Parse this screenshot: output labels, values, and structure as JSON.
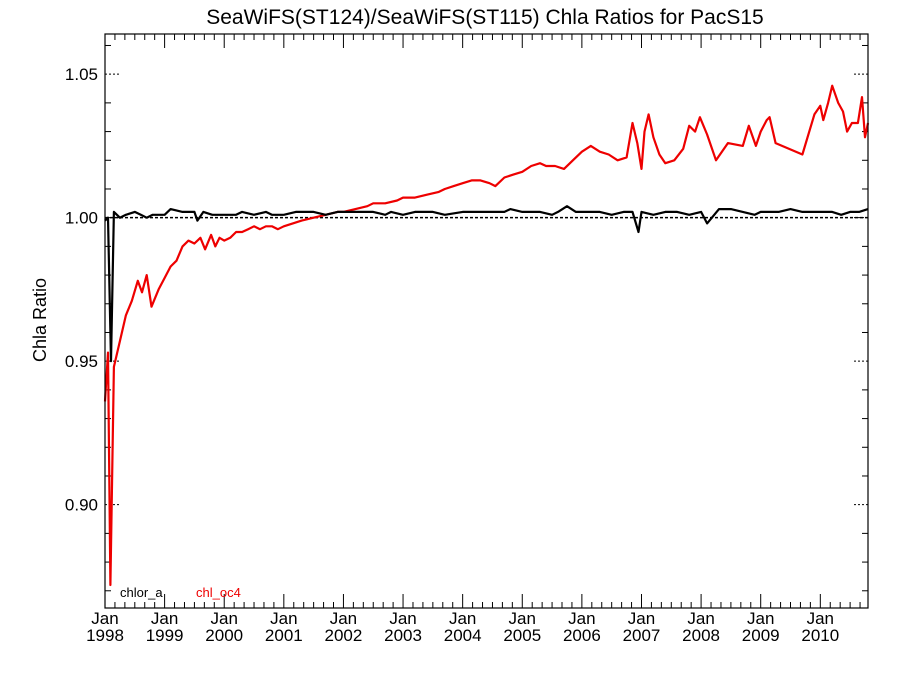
{
  "chart_data": {
    "type": "line",
    "title": "SeaWiFS(ST124)/SeaWiFS(ST115)  Chla Ratios for PacS15",
    "xlabel": "",
    "ylabel": "Chla Ratio",
    "x_range_years": [
      1998.0,
      2010.8
    ],
    "ylim": [
      0.864,
      1.064
    ],
    "y_ticks": [
      {
        "value": 0.9,
        "label": "0.90"
      },
      {
        "value": 0.95,
        "label": "0.95"
      },
      {
        "value": 1.0,
        "label": "1.00"
      },
      {
        "value": 1.05,
        "label": "1.05"
      }
    ],
    "x_ticks": [
      {
        "value": 1998,
        "month": "Jan",
        "year": "1998"
      },
      {
        "value": 1999,
        "month": "Jan",
        "year": "1999"
      },
      {
        "value": 2000,
        "month": "Jan",
        "year": "2000"
      },
      {
        "value": 2001,
        "month": "Jan",
        "year": "2001"
      },
      {
        "value": 2002,
        "month": "Jan",
        "year": "2002"
      },
      {
        "value": 2003,
        "month": "Jan",
        "year": "2003"
      },
      {
        "value": 2004,
        "month": "Jan",
        "year": "2004"
      },
      {
        "value": 2005,
        "month": "Jan",
        "year": "2005"
      },
      {
        "value": 2006,
        "month": "Jan",
        "year": "2006"
      },
      {
        "value": 2007,
        "month": "Jan",
        "year": "2007"
      },
      {
        "value": 2008,
        "month": "Jan",
        "year": "2008"
      },
      {
        "value": 2009,
        "month": "Jan",
        "year": "2009"
      },
      {
        "value": 2010,
        "month": "Jan",
        "year": "2010"
      }
    ],
    "reference_line": 1.0,
    "grid": false,
    "legend_position": "bottom-left",
    "series": [
      {
        "name": "chlor_a",
        "color": "#000000",
        "points": [
          [
            1998.0,
            0.999
          ],
          [
            1998.05,
            1.0
          ],
          [
            1998.1,
            0.95
          ],
          [
            1998.15,
            1.002
          ],
          [
            1998.25,
            1.0
          ],
          [
            1998.35,
            1.001
          ],
          [
            1998.5,
            1.002
          ],
          [
            1998.6,
            1.001
          ],
          [
            1998.7,
            1.0
          ],
          [
            1998.8,
            1.001
          ],
          [
            1999.0,
            1.001
          ],
          [
            1999.1,
            1.003
          ],
          [
            1999.3,
            1.002
          ],
          [
            1999.5,
            1.002
          ],
          [
            1999.55,
            0.999
          ],
          [
            1999.65,
            1.002
          ],
          [
            1999.8,
            1.001
          ],
          [
            2000.0,
            1.001
          ],
          [
            2000.2,
            1.001
          ],
          [
            2000.3,
            1.002
          ],
          [
            2000.5,
            1.001
          ],
          [
            2000.7,
            1.002
          ],
          [
            2000.8,
            1.001
          ],
          [
            2001.0,
            1.001
          ],
          [
            2001.2,
            1.002
          ],
          [
            2001.5,
            1.002
          ],
          [
            2001.7,
            1.001
          ],
          [
            2001.9,
            1.002
          ],
          [
            2002.0,
            1.002
          ],
          [
            2002.3,
            1.002
          ],
          [
            2002.5,
            1.002
          ],
          [
            2002.7,
            1.001
          ],
          [
            2002.8,
            1.002
          ],
          [
            2003.0,
            1.001
          ],
          [
            2003.2,
            1.002
          ],
          [
            2003.5,
            1.002
          ],
          [
            2003.7,
            1.001
          ],
          [
            2004.0,
            1.002
          ],
          [
            2004.3,
            1.002
          ],
          [
            2004.5,
            1.002
          ],
          [
            2004.7,
            1.002
          ],
          [
            2004.8,
            1.003
          ],
          [
            2005.0,
            1.002
          ],
          [
            2005.3,
            1.002
          ],
          [
            2005.5,
            1.001
          ],
          [
            2005.6,
            1.002
          ],
          [
            2005.75,
            1.004
          ],
          [
            2005.9,
            1.002
          ],
          [
            2006.0,
            1.002
          ],
          [
            2006.3,
            1.002
          ],
          [
            2006.5,
            1.001
          ],
          [
            2006.7,
            1.002
          ],
          [
            2006.85,
            1.002
          ],
          [
            2006.95,
            0.995
          ],
          [
            2007.0,
            1.002
          ],
          [
            2007.2,
            1.001
          ],
          [
            2007.4,
            1.002
          ],
          [
            2007.6,
            1.002
          ],
          [
            2007.8,
            1.001
          ],
          [
            2008.0,
            1.002
          ],
          [
            2008.1,
            0.998
          ],
          [
            2008.3,
            1.003
          ],
          [
            2008.5,
            1.003
          ],
          [
            2008.7,
            1.002
          ],
          [
            2008.9,
            1.001
          ],
          [
            2009.0,
            1.002
          ],
          [
            2009.3,
            1.002
          ],
          [
            2009.5,
            1.003
          ],
          [
            2009.7,
            1.002
          ],
          [
            2009.9,
            1.002
          ],
          [
            2010.0,
            1.002
          ],
          [
            2010.2,
            1.002
          ],
          [
            2010.35,
            1.001
          ],
          [
            2010.5,
            1.002
          ],
          [
            2010.65,
            1.002
          ],
          [
            2010.8,
            1.003
          ]
        ]
      },
      {
        "name": "chl_oc4",
        "color": "#ee0000",
        "points": [
          [
            1998.0,
            0.936
          ],
          [
            1998.05,
            0.953
          ],
          [
            1998.09,
            0.872
          ],
          [
            1998.15,
            0.948
          ],
          [
            1998.25,
            0.957
          ],
          [
            1998.35,
            0.966
          ],
          [
            1998.45,
            0.971
          ],
          [
            1998.55,
            0.978
          ],
          [
            1998.62,
            0.974
          ],
          [
            1998.7,
            0.98
          ],
          [
            1998.78,
            0.969
          ],
          [
            1998.9,
            0.975
          ],
          [
            1999.0,
            0.979
          ],
          [
            1999.1,
            0.983
          ],
          [
            1999.2,
            0.985
          ],
          [
            1999.3,
            0.99
          ],
          [
            1999.4,
            0.992
          ],
          [
            1999.5,
            0.991
          ],
          [
            1999.6,
            0.993
          ],
          [
            1999.68,
            0.989
          ],
          [
            1999.78,
            0.994
          ],
          [
            1999.85,
            0.99
          ],
          [
            1999.92,
            0.993
          ],
          [
            2000.0,
            0.992
          ],
          [
            2000.1,
            0.993
          ],
          [
            2000.2,
            0.995
          ],
          [
            2000.3,
            0.995
          ],
          [
            2000.4,
            0.996
          ],
          [
            2000.5,
            0.997
          ],
          [
            2000.6,
            0.996
          ],
          [
            2000.7,
            0.997
          ],
          [
            2000.8,
            0.997
          ],
          [
            2000.9,
            0.996
          ],
          [
            2001.0,
            0.997
          ],
          [
            2001.15,
            0.998
          ],
          [
            2001.3,
            0.999
          ],
          [
            2001.5,
            1.0
          ],
          [
            2001.7,
            1.001
          ],
          [
            2001.9,
            1.002
          ],
          [
            2002.0,
            1.002
          ],
          [
            2002.2,
            1.003
          ],
          [
            2002.4,
            1.004
          ],
          [
            2002.5,
            1.005
          ],
          [
            2002.7,
            1.005
          ],
          [
            2002.9,
            1.006
          ],
          [
            2003.0,
            1.007
          ],
          [
            2003.2,
            1.007
          ],
          [
            2003.4,
            1.008
          ],
          [
            2003.6,
            1.009
          ],
          [
            2003.7,
            1.01
          ],
          [
            2003.85,
            1.011
          ],
          [
            2004.0,
            1.012
          ],
          [
            2004.15,
            1.013
          ],
          [
            2004.3,
            1.013
          ],
          [
            2004.45,
            1.012
          ],
          [
            2004.55,
            1.011
          ],
          [
            2004.7,
            1.014
          ],
          [
            2004.85,
            1.015
          ],
          [
            2005.0,
            1.016
          ],
          [
            2005.15,
            1.018
          ],
          [
            2005.3,
            1.019
          ],
          [
            2005.4,
            1.018
          ],
          [
            2005.55,
            1.018
          ],
          [
            2005.7,
            1.017
          ],
          [
            2005.85,
            1.02
          ],
          [
            2006.0,
            1.023
          ],
          [
            2006.15,
            1.025
          ],
          [
            2006.3,
            1.023
          ],
          [
            2006.45,
            1.022
          ],
          [
            2006.6,
            1.02
          ],
          [
            2006.75,
            1.021
          ],
          [
            2006.85,
            1.033
          ],
          [
            2006.93,
            1.026
          ],
          [
            2007.0,
            1.017
          ],
          [
            2007.05,
            1.03
          ],
          [
            2007.12,
            1.036
          ],
          [
            2007.2,
            1.028
          ],
          [
            2007.3,
            1.022
          ],
          [
            2007.4,
            1.019
          ],
          [
            2007.55,
            1.02
          ],
          [
            2007.7,
            1.024
          ],
          [
            2007.8,
            1.032
          ],
          [
            2007.9,
            1.03
          ],
          [
            2007.98,
            1.035
          ],
          [
            2008.1,
            1.029
          ],
          [
            2008.25,
            1.02
          ],
          [
            2008.45,
            1.026
          ],
          [
            2008.7,
            1.025
          ],
          [
            2008.8,
            1.032
          ],
          [
            2008.92,
            1.025
          ],
          [
            2009.0,
            1.03
          ],
          [
            2009.1,
            1.034
          ],
          [
            2009.15,
            1.035
          ],
          [
            2009.25,
            1.026
          ],
          [
            2009.7,
            1.022
          ],
          [
            2009.9,
            1.036
          ],
          [
            2010.0,
            1.039
          ],
          [
            2010.05,
            1.034
          ],
          [
            2010.13,
            1.04
          ],
          [
            2010.2,
            1.046
          ],
          [
            2010.3,
            1.04
          ],
          [
            2010.38,
            1.037
          ],
          [
            2010.45,
            1.03
          ],
          [
            2010.53,
            1.033
          ],
          [
            2010.63,
            1.033
          ],
          [
            2010.7,
            1.042
          ],
          [
            2010.75,
            1.028
          ],
          [
            2010.8,
            1.033
          ]
        ]
      }
    ]
  }
}
